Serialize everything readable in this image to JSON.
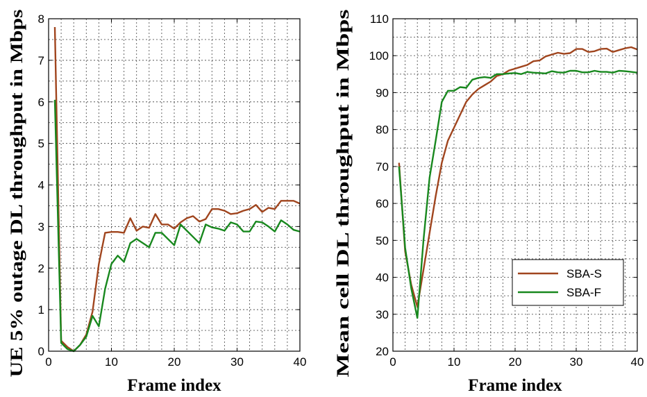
{
  "chart_data": [
    {
      "type": "line",
      "xlabel": "Frame index",
      "ylabel": "UE 5% outage DL throughput in Mbps",
      "xlim": [
        0,
        40
      ],
      "ylim": [
        0,
        8
      ],
      "xticks": [
        0,
        10,
        20,
        30,
        40
      ],
      "yticks": [
        0,
        1,
        2,
        3,
        4,
        5,
        6,
        7,
        8
      ],
      "grid": true,
      "legend": "none",
      "series": [
        {
          "name": "SBA-S",
          "color": "#a0451e",
          "x": [
            1,
            2,
            3,
            4,
            5,
            6,
            7,
            8,
            9,
            10,
            11,
            12,
            13,
            14,
            15,
            16,
            17,
            18,
            19,
            20,
            21,
            22,
            23,
            24,
            25,
            26,
            27,
            28,
            29,
            30,
            31,
            32,
            33,
            34,
            35,
            36,
            37,
            38,
            39,
            40
          ],
          "y": [
            7.8,
            0.25,
            0.1,
            0.0,
            0.15,
            0.4,
            0.95,
            2.1,
            2.85,
            2.87,
            2.87,
            2.85,
            3.2,
            2.9,
            3.0,
            2.97,
            3.3,
            3.05,
            3.05,
            2.95,
            3.1,
            3.2,
            3.25,
            3.12,
            3.18,
            3.42,
            3.42,
            3.38,
            3.3,
            3.32,
            3.38,
            3.42,
            3.52,
            3.35,
            3.45,
            3.42,
            3.62,
            3.62,
            3.62,
            3.55
          ]
        },
        {
          "name": "SBA-F",
          "color": "#18881e",
          "x": [
            1,
            2,
            3,
            4,
            5,
            6,
            7,
            8,
            9,
            10,
            11,
            12,
            13,
            14,
            15,
            16,
            17,
            18,
            19,
            20,
            21,
            22,
            23,
            24,
            25,
            26,
            27,
            28,
            29,
            30,
            31,
            32,
            33,
            34,
            35,
            36,
            37,
            38,
            39,
            40
          ],
          "y": [
            6.05,
            0.2,
            0.05,
            0.0,
            0.15,
            0.35,
            0.85,
            0.6,
            1.5,
            2.1,
            2.3,
            2.15,
            2.6,
            2.7,
            2.6,
            2.5,
            2.85,
            2.85,
            2.7,
            2.55,
            3.05,
            2.9,
            2.75,
            2.6,
            3.05,
            2.98,
            2.95,
            2.9,
            3.1,
            3.05,
            2.88,
            2.88,
            3.12,
            3.1,
            3.0,
            2.88,
            3.15,
            3.05,
            2.92,
            2.88
          ]
        }
      ]
    },
    {
      "type": "line",
      "xlabel": "Frame index",
      "ylabel": "Mean cell DL throughput in Mbps",
      "xlim": [
        0,
        40
      ],
      "ylim": [
        20,
        110
      ],
      "xticks": [
        0,
        10,
        20,
        30,
        40
      ],
      "yticks": [
        20,
        30,
        40,
        50,
        60,
        70,
        80,
        90,
        100,
        110
      ],
      "grid": true,
      "legend": "lower-right",
      "series": [
        {
          "name": "SBA-S",
          "color": "#a0451e",
          "x": [
            1,
            2,
            3,
            4,
            5,
            6,
            7,
            8,
            9,
            10,
            11,
            12,
            13,
            14,
            15,
            16,
            17,
            18,
            19,
            20,
            21,
            22,
            23,
            24,
            25,
            26,
            27,
            28,
            29,
            30,
            31,
            32,
            33,
            34,
            35,
            36,
            37,
            38,
            39,
            40
          ],
          "y": [
            71,
            47,
            38,
            32,
            42,
            52,
            62,
            71,
            77,
            80.5,
            84,
            87.5,
            89.5,
            91,
            92,
            93,
            94.5,
            95,
            96,
            96.5,
            97,
            97.5,
            98.5,
            98.7,
            99.8,
            100.3,
            100.8,
            100.5,
            100.7,
            101.8,
            101.8,
            101,
            101.2,
            101.8,
            101.9,
            101,
            101.5,
            102,
            102.3,
            101.7
          ]
        },
        {
          "name": "SBA-F",
          "color": "#18881e",
          "x": [
            1,
            2,
            3,
            4,
            5,
            6,
            7,
            8,
            9,
            10,
            11,
            12,
            13,
            14,
            15,
            16,
            17,
            18,
            19,
            20,
            21,
            22,
            23,
            24,
            25,
            26,
            27,
            28,
            29,
            30,
            31,
            32,
            33,
            34,
            35,
            36,
            37,
            38,
            39,
            40
          ],
          "y": [
            70,
            48,
            37,
            29,
            50,
            67,
            77,
            87.5,
            90.5,
            90.5,
            91.5,
            91.3,
            93.5,
            94,
            94.2,
            94,
            95,
            95,
            95.2,
            95.3,
            95,
            95.6,
            95.4,
            95.3,
            95.2,
            95.8,
            95.5,
            95.4,
            95.9,
            95.9,
            95.5,
            95.5,
            95.9,
            95.6,
            95.6,
            95.4,
            95.9,
            95.8,
            95.6,
            95.4
          ]
        }
      ]
    }
  ]
}
